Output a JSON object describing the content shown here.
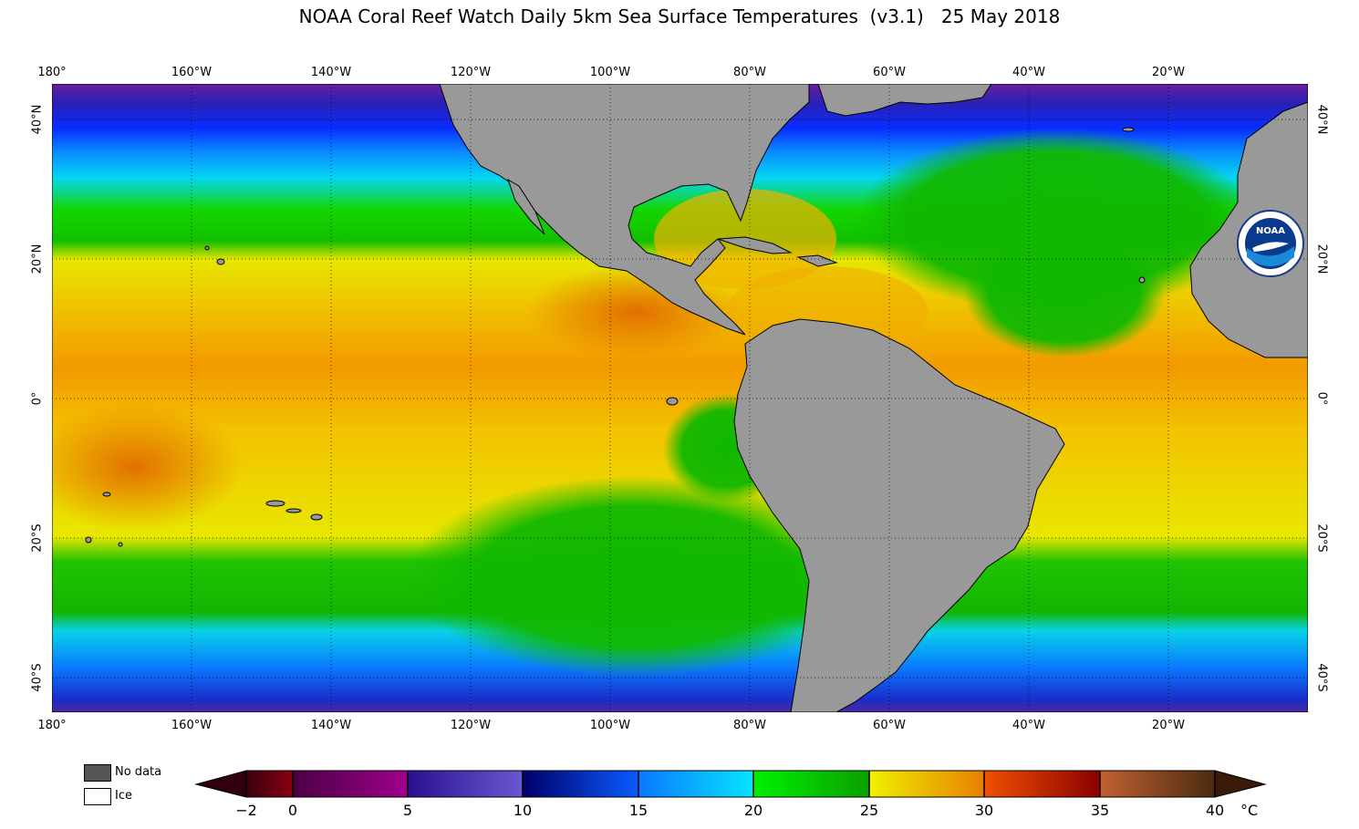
{
  "title": "NOAA Coral Reef Watch Daily 5km Sea Surface Temperatures  (v3.1)   25 May 2018",
  "lon_labels": [
    "180°",
    "160°W",
    "140°W",
    "120°W",
    "100°W",
    "80°W",
    "60°W",
    "40°W",
    "20°W"
  ],
  "lat_labels": [
    "40°N",
    "20°N",
    "0°",
    "20°S",
    "40°S"
  ],
  "legend": {
    "nodata_label": "No data",
    "ice_label": "Ice",
    "nodata_color": "#555555",
    "ice_color": "#ffffff"
  },
  "colorbar": {
    "ticks": [
      "−2",
      "0",
      "5",
      "10",
      "15",
      "20",
      "25",
      "30",
      "35",
      "40"
    ],
    "unit": "°C",
    "min": -2,
    "max": 40
  },
  "colors": {
    "land": "#999999",
    "coast": "#000000",
    "grid": "#000000"
  },
  "logo": {
    "text": "NOAA"
  }
}
